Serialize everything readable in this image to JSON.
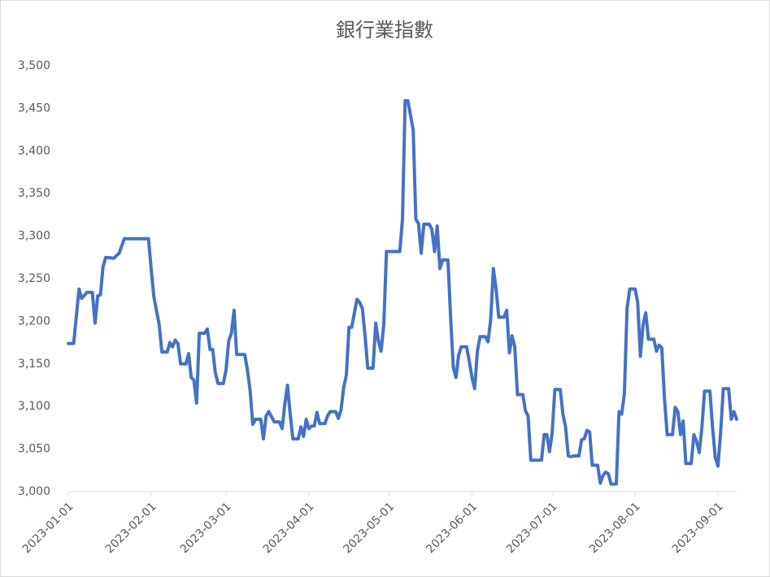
{
  "chart_data": {
    "type": "line",
    "title": "銀行業指數",
    "color": "#4472c4",
    "x": [
      "2023-01-01",
      "2023-01-03",
      "2023-01-05",
      "2023-01-06",
      "2023-01-08",
      "2023-01-10",
      "2023-01-11",
      "2023-01-12",
      "2023-01-13",
      "2023-01-14",
      "2023-01-15",
      "2023-01-18",
      "2023-01-20",
      "2023-01-22",
      "2023-01-31",
      "2023-02-01",
      "2023-02-02",
      "2023-02-04",
      "2023-02-05",
      "2023-02-07",
      "2023-02-08",
      "2023-02-09",
      "2023-02-10",
      "2023-02-11",
      "2023-02-12",
      "2023-02-14",
      "2023-02-15",
      "2023-02-16",
      "2023-02-17",
      "2023-02-18",
      "2023-02-19",
      "2023-02-21",
      "2023-02-22",
      "2023-02-23",
      "2023-02-24",
      "2023-02-25",
      "2023-02-26",
      "2023-02-28",
      "2023-03-01",
      "2023-03-02",
      "2023-03-03",
      "2023-03-04",
      "2023-03-05",
      "2023-03-08",
      "2023-03-09",
      "2023-03-10",
      "2023-03-11",
      "2023-03-12",
      "2023-03-14",
      "2023-03-15",
      "2023-03-16",
      "2023-03-17",
      "2023-03-19",
      "2023-03-21",
      "2023-03-22",
      "2023-03-23",
      "2023-03-24",
      "2023-03-25",
      "2023-03-26",
      "2023-03-28",
      "2023-03-29",
      "2023-03-30",
      "2023-03-31",
      "2023-04-01",
      "2023-04-02",
      "2023-04-03",
      "2023-04-04",
      "2023-04-05",
      "2023-04-07",
      "2023-04-08",
      "2023-04-09",
      "2023-04-11",
      "2023-04-12",
      "2023-04-13",
      "2023-04-14",
      "2023-04-15",
      "2023-04-16",
      "2023-04-17",
      "2023-04-19",
      "2023-04-20",
      "2023-04-21",
      "2023-04-22",
      "2023-04-23",
      "2023-04-25",
      "2023-04-26",
      "2023-04-27",
      "2023-04-28",
      "2023-04-29",
      "2023-04-30",
      "2023-05-05",
      "2023-05-06",
      "2023-05-07",
      "2023-05-08",
      "2023-05-10",
      "2023-05-11",
      "2023-05-12",
      "2023-05-13",
      "2023-05-14",
      "2023-05-16",
      "2023-05-17",
      "2023-05-18",
      "2023-05-19",
      "2023-05-20",
      "2023-05-21",
      "2023-05-23",
      "2023-05-24",
      "2023-05-25",
      "2023-05-26",
      "2023-05-27",
      "2023-05-28",
      "2023-05-30",
      "2023-05-31",
      "2023-06-01",
      "2023-06-02",
      "2023-06-03",
      "2023-06-04",
      "2023-06-06",
      "2023-06-07",
      "2023-06-08",
      "2023-06-09",
      "2023-06-10",
      "2023-06-11",
      "2023-06-13",
      "2023-06-14",
      "2023-06-15",
      "2023-06-16",
      "2023-06-17",
      "2023-06-18",
      "2023-06-20",
      "2023-06-21",
      "2023-06-22",
      "2023-06-23",
      "2023-06-27",
      "2023-06-28",
      "2023-06-29",
      "2023-06-30",
      "2023-07-01",
      "2023-07-02",
      "2023-07-04",
      "2023-07-05",
      "2023-07-06",
      "2023-07-07",
      "2023-07-08",
      "2023-07-09",
      "2023-07-11",
      "2023-07-12",
      "2023-07-13",
      "2023-07-14",
      "2023-07-15",
      "2023-07-16",
      "2023-07-18",
      "2023-07-19",
      "2023-07-20",
      "2023-07-21",
      "2023-07-22",
      "2023-07-23",
      "2023-07-25",
      "2023-07-26",
      "2023-07-27",
      "2023-07-28",
      "2023-07-29",
      "2023-07-30",
      "2023-08-01",
      "2023-08-02",
      "2023-08-03",
      "2023-08-04",
      "2023-08-05",
      "2023-08-06",
      "2023-08-08",
      "2023-08-09",
      "2023-08-10",
      "2023-08-11",
      "2023-08-12",
      "2023-08-13",
      "2023-08-15",
      "2023-08-16",
      "2023-08-17",
      "2023-08-18",
      "2023-08-19",
      "2023-08-20",
      "2023-08-22",
      "2023-08-23",
      "2023-08-24",
      "2023-08-25",
      "2023-08-26",
      "2023-08-27",
      "2023-08-29",
      "2023-08-30",
      "2023-08-31",
      "2023-09-01",
      "2023-09-02",
      "2023-09-03",
      "2023-09-05",
      "2023-09-06",
      "2023-09-07",
      "2023-09-08"
    ],
    "values": [
      3174,
      3174,
      3238,
      3227,
      3234,
      3234,
      3198,
      3230,
      3231,
      3264,
      3275,
      3274,
      3280,
      3297,
      3297,
      3262,
      3229,
      3196,
      3164,
      3164,
      3175,
      3170,
      3178,
      3174,
      3150,
      3150,
      3162,
      3134,
      3131,
      3104,
      3186,
      3186,
      3191,
      3167,
      3167,
      3140,
      3127,
      3127,
      3143,
      3177,
      3186,
      3213,
      3161,
      3161,
      3143,
      3119,
      3079,
      3085,
      3085,
      3062,
      3089,
      3094,
      3082,
      3082,
      3074,
      3103,
      3125,
      3091,
      3062,
      3062,
      3076,
      3065,
      3085,
      3074,
      3077,
      3077,
      3093,
      3080,
      3080,
      3089,
      3094,
      3094,
      3086,
      3096,
      3122,
      3137,
      3193,
      3193,
      3226,
      3222,
      3215,
      3183,
      3145,
      3145,
      3198,
      3177,
      3165,
      3196,
      3282,
      3282,
      3320,
      3459,
      3459,
      3425,
      3320,
      3315,
      3280,
      3314,
      3314,
      3308,
      3282,
      3312,
      3262,
      3272,
      3272,
      3205,
      3146,
      3134,
      3160,
      3170,
      3170,
      3153,
      3134,
      3121,
      3165,
      3182,
      3182,
      3176,
      3202,
      3262,
      3238,
      3205,
      3205,
      3213,
      3163,
      3183,
      3170,
      3114,
      3114,
      3095,
      3089,
      3037,
      3037,
      3067,
      3067,
      3047,
      3069,
      3120,
      3120,
      3091,
      3076,
      3042,
      3041,
      3042,
      3042,
      3061,
      3062,
      3072,
      3070,
      3031,
      3031,
      3010,
      3019,
      3023,
      3021,
      3009,
      3009,
      3094,
      3091,
      3115,
      3215,
      3238,
      3238,
      3222,
      3159,
      3196,
      3210,
      3179,
      3179,
      3165,
      3172,
      3169,
      3110,
      3067,
      3067,
      3099,
      3094,
      3067,
      3083,
      3033,
      3033,
      3067,
      3059,
      3046,
      3076,
      3118,
      3118,
      3075,
      3040,
      3030,
      3070,
      3121,
      3121,
      3085,
      3094,
      3085
    ],
    "xlim": [
      "2023-01-01",
      "2023-09-08"
    ],
    "xticks": [
      "2023-01-01",
      "2023-02-01",
      "2023-03-01",
      "2023-04-01",
      "2023-05-01",
      "2023-06-01",
      "2023-07-01",
      "2023-08-01",
      "2023-09-01"
    ],
    "ylim": [
      3000,
      3500
    ],
    "yticks": [
      {
        "value": 3000,
        "label": "3,000"
      },
      {
        "value": 3050,
        "label": "3,050"
      },
      {
        "value": 3100,
        "label": "3,100"
      },
      {
        "value": 3150,
        "label": "3,150"
      },
      {
        "value": 3200,
        "label": "3,200"
      },
      {
        "value": 3250,
        "label": "3,250"
      },
      {
        "value": 3300,
        "label": "3,300"
      },
      {
        "value": 3350,
        "label": "3,350"
      },
      {
        "value": 3400,
        "label": "3,400"
      },
      {
        "value": 3450,
        "label": "3,450"
      },
      {
        "value": 3500,
        "label": "3,500"
      }
    ]
  }
}
